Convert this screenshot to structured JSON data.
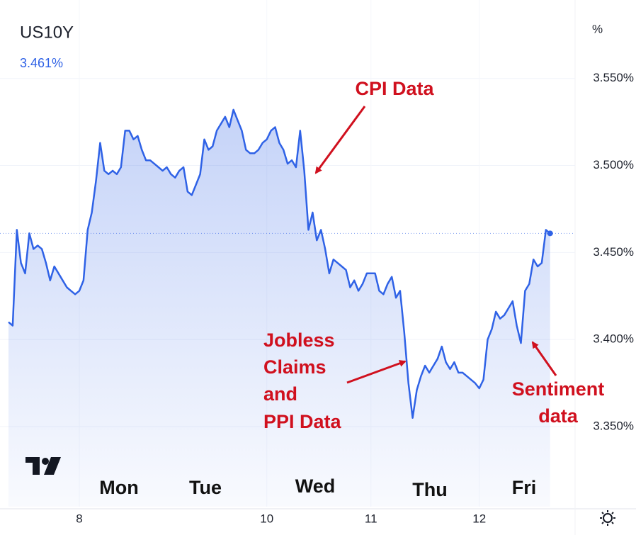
{
  "chart_data": {
    "type": "area",
    "title": "US10Y",
    "price_label": "3.461%",
    "y_unit": "%",
    "color": "#2f62e6",
    "values": [
      3.41,
      3.408,
      3.463,
      3.444,
      3.438,
      3.461,
      3.452,
      3.454,
      3.452,
      3.444,
      3.434,
      3.442,
      3.438,
      3.434,
      3.43,
      3.428,
      3.426,
      3.428,
      3.434,
      3.463,
      3.473,
      3.491,
      3.513,
      3.497,
      3.495,
      3.497,
      3.495,
      3.499,
      3.52,
      3.52,
      3.515,
      3.517,
      3.509,
      3.503,
      3.503,
      3.501,
      3.499,
      3.497,
      3.499,
      3.495,
      3.493,
      3.497,
      3.499,
      3.485,
      3.483,
      3.489,
      3.495,
      3.515,
      3.509,
      3.511,
      3.52,
      3.524,
      3.528,
      3.522,
      3.532,
      3.526,
      3.52,
      3.509,
      3.507,
      3.507,
      3.509,
      3.513,
      3.515,
      3.52,
      3.522,
      3.513,
      3.509,
      3.501,
      3.503,
      3.499,
      3.52,
      3.497,
      3.463,
      3.473,
      3.457,
      3.463,
      3.452,
      3.438,
      3.446,
      3.444,
      3.442,
      3.44,
      3.43,
      3.434,
      3.428,
      3.432,
      3.438,
      3.438,
      3.438,
      3.428,
      3.426,
      3.432,
      3.436,
      3.424,
      3.428,
      3.404,
      3.375,
      3.355,
      3.371,
      3.379,
      3.385,
      3.381,
      3.385,
      3.389,
      3.396,
      3.387,
      3.383,
      3.387,
      3.381,
      3.381,
      3.379,
      3.377,
      3.375,
      3.372,
      3.377,
      3.4,
      3.406,
      3.416,
      3.412,
      3.414,
      3.418,
      3.422,
      3.408,
      3.398,
      3.428,
      3.432,
      3.446,
      3.442,
      3.444,
      3.463,
      3.461
    ],
    "xlim": [
      0,
      136
    ],
    "xticks": [
      {
        "value": 17,
        "label": "8"
      },
      {
        "value": 62,
        "label": "10"
      },
      {
        "value": 87,
        "label": "11"
      },
      {
        "value": 113,
        "label": "12"
      }
    ],
    "ylim": [
      3.304,
      3.591
    ],
    "yticks": [
      {
        "value": 3.35,
        "label": "3.350%"
      },
      {
        "value": 3.4,
        "label": "3.400%"
      },
      {
        "value": 3.45,
        "label": "3.450%"
      },
      {
        "value": 3.5,
        "label": "3.500%"
      },
      {
        "value": 3.55,
        "label": "3.550%"
      }
    ],
    "grid": true,
    "day_labels": [
      "Mon",
      "Tue",
      "Wed",
      "Thu",
      "Fri"
    ],
    "annotations": [
      [
        "CPI Data"
      ],
      [
        "Jobless",
        "Claims",
        "and",
        "PPI Data"
      ],
      [
        "Sentiment",
        "data"
      ]
    ]
  }
}
